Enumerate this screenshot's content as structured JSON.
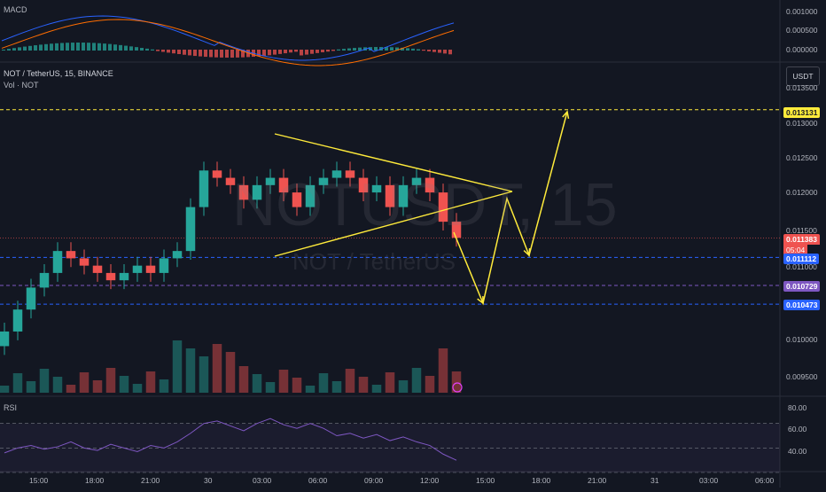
{
  "main_header": {
    "symbol_line": "NOT / TetherUS, 15, BINANCE",
    "volume_label": "Vol · NOT"
  },
  "watermark": {
    "ticker": "NOTUSDT, 15",
    "pair": "NOT / TetherUS"
  },
  "macd_label": "MACD",
  "rsi_label": "RSI",
  "unit_button": "USDT",
  "price_tags": {
    "target": "0.013131",
    "last_price": "0.011383",
    "countdown": "05:04",
    "level1": "0.011112",
    "level2": "0.010729",
    "level3": "0.010473"
  },
  "colors": {
    "up": "#26a69a",
    "down": "#ef5350",
    "drawing": "#ffeb3b",
    "level_line": "#2962ff",
    "macd_line": "#2962ff",
    "signal_line": "#ff6d00",
    "rsi_line": "#7e57c2"
  },
  "chart_data": [
    {
      "type": "candlestick",
      "title": "NOT / TetherUS, 15, BINANCE",
      "y_ticks": [
        "0.013500",
        "0.013000",
        "0.012500",
        "0.012000",
        "0.011500",
        "0.011000",
        "0.010000",
        "0.009500"
      ],
      "x_ticks": [
        "15:00",
        "18:00",
        "21:00",
        "30",
        "03:00",
        "06:00",
        "09:00",
        "12:00",
        "15:00",
        "18:00",
        "21:00",
        "31",
        "03:00",
        "06:00"
      ],
      "ylim": [
        0.0093,
        0.0136
      ],
      "closes": [
        0.0101,
        0.0104,
        0.0107,
        0.0109,
        0.0112,
        0.0111,
        0.011,
        0.0109,
        0.0108,
        0.0109,
        0.011,
        0.0109,
        0.0111,
        0.0112,
        0.0118,
        0.0123,
        0.0122,
        0.0121,
        0.0119,
        0.0121,
        0.0122,
        0.012,
        0.0118,
        0.0121,
        0.0122,
        0.0123,
        0.0122,
        0.012,
        0.0121,
        0.0118,
        0.0121,
        0.0122,
        0.012,
        0.0116,
        0.01138
      ],
      "horizontal_levels": [
        0.013131,
        0.011112,
        0.010729,
        0.010473
      ],
      "triangle": {
        "upper": [
          [
            0.0128,
            0.012
          ]
        ],
        "lower": [
          [
            0.0111,
            0.0119
          ]
        ]
      },
      "projection_path": [
        0.0116,
        0.0105,
        0.0119,
        0.0111,
        0.013131
      ]
    },
    {
      "type": "bar",
      "title": "MACD",
      "y_ticks": [
        "0.001000",
        "0.000500",
        "0.000000"
      ]
    },
    {
      "type": "line",
      "title": "RSI",
      "y_ticks": [
        "80.00",
        "60.00",
        "40.00"
      ],
      "ylim": [
        30,
        90
      ],
      "values": [
        46,
        50,
        52,
        49,
        51,
        55,
        50,
        48,
        53,
        50,
        47,
        52,
        50,
        55,
        62,
        70,
        72,
        68,
        64,
        70,
        74,
        69,
        66,
        70,
        66,
        60,
        62,
        58,
        61,
        56,
        59,
        55,
        52,
        45,
        40
      ]
    }
  ]
}
